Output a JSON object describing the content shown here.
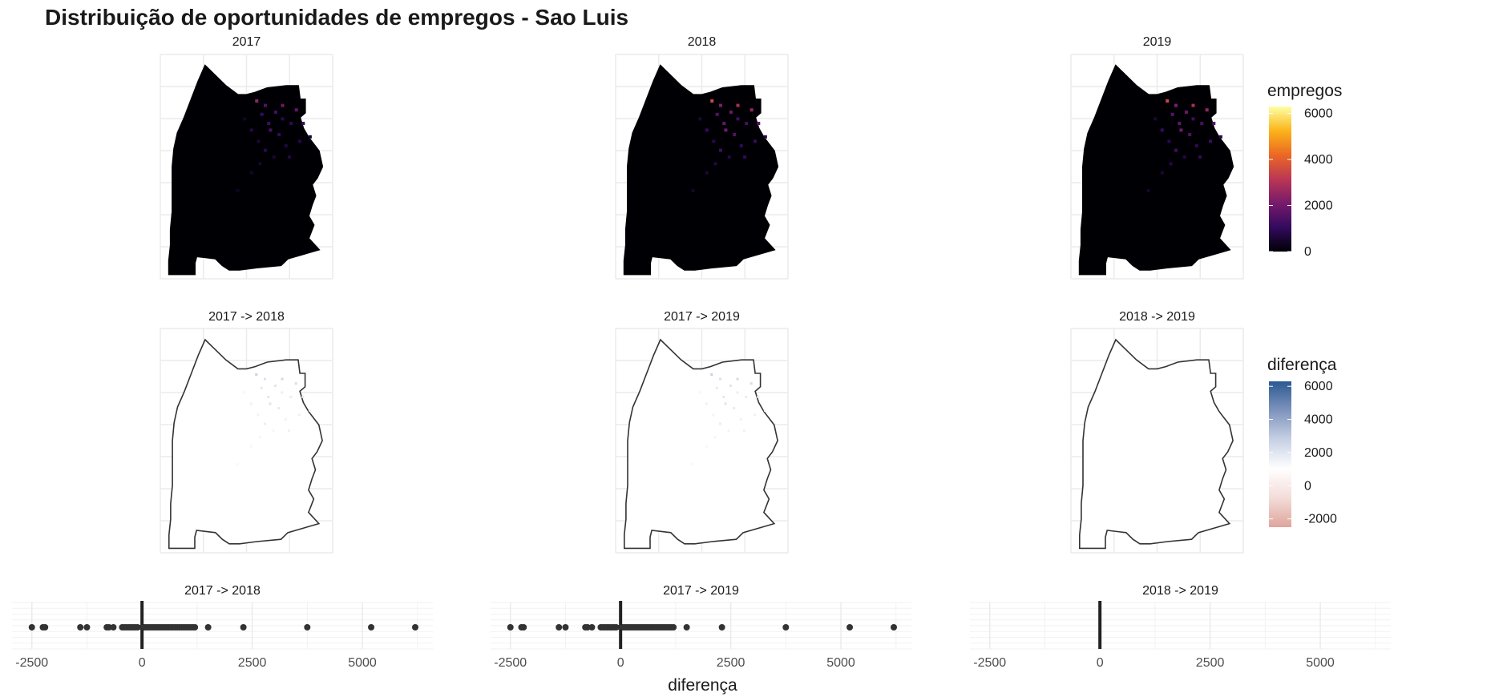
{
  "title": "Distribuição de oportunidades de empregos - Sao Luis",
  "chart_data": [
    {
      "type": "heatmap",
      "panels": [
        "2017",
        "2018",
        "2019"
      ],
      "fill_variable": "empregos",
      "legend": {
        "title": "empregos",
        "ticks": [
          0,
          2000,
          4000,
          6000
        ],
        "colors": [
          "#000004",
          "#320a5e",
          "#781b6c",
          "#bb3754",
          "#ec6824",
          "#fbb41a",
          "#fcffa4"
        ],
        "range": [
          0,
          6300
        ],
        "placement": "right"
      },
      "grid": true
    },
    {
      "type": "heatmap",
      "panels": [
        "2017 -> 2018",
        "2017 -> 2019",
        "2018 -> 2019"
      ],
      "fill_variable": "diferença",
      "legend": {
        "title": "diferença",
        "ticks": [
          6000,
          4000,
          2000,
          0,
          -2000
        ],
        "colors": [
          "#dfa59c",
          "#f3dcd8",
          "#ffffff",
          "#c7d1e4",
          "#7f94bd",
          "#2b5a92"
        ],
        "range": [
          -2500,
          6300
        ],
        "placement": "right"
      },
      "grid": true
    },
    {
      "type": "scatter",
      "xlabel": "diferença",
      "x_ticks": [
        -2500,
        0,
        2500,
        5000
      ],
      "xlim": [
        -2950,
        6600
      ],
      "panels": [
        {
          "title": "2017 -> 2018",
          "values": [
            -2500,
            -2250,
            -2200,
            -1400,
            -1250,
            -800,
            -750,
            -650,
            -450,
            -400,
            -350,
            -300,
            -250,
            -200,
            -150,
            -100,
            50,
            100,
            150,
            200,
            250,
            300,
            350,
            400,
            450,
            500,
            550,
            600,
            650,
            700,
            750,
            800,
            850,
            900,
            950,
            1000,
            1050,
            1100,
            1150,
            1200,
            1500,
            2300,
            3750,
            5200,
            6200
          ]
        },
        {
          "title": "2017 -> 2019",
          "values": [
            -2500,
            -2250,
            -2200,
            -1400,
            -1250,
            -800,
            -750,
            -650,
            -450,
            -400,
            -350,
            -300,
            -250,
            -200,
            -150,
            -100,
            50,
            100,
            150,
            200,
            250,
            300,
            350,
            400,
            450,
            500,
            550,
            600,
            650,
            700,
            750,
            800,
            850,
            900,
            950,
            1000,
            1050,
            1100,
            1150,
            1200,
            1500,
            2300,
            3750,
            5200,
            6200
          ]
        },
        {
          "title": "2018 -> 2019",
          "values": []
        }
      ],
      "grid": true
    }
  ]
}
